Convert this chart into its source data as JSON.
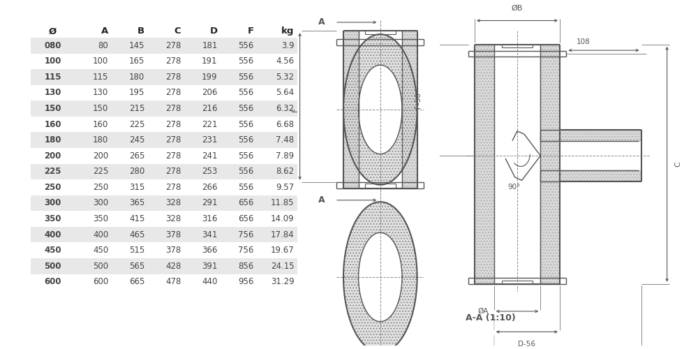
{
  "table": {
    "headers": [
      "Ø",
      "A",
      "B",
      "C",
      "D",
      "F",
      "kg"
    ],
    "rows": [
      [
        "080",
        "80",
        "145",
        "278",
        "181",
        "556",
        "3.9"
      ],
      [
        "100",
        "100",
        "165",
        "278",
        "191",
        "556",
        "4.56"
      ],
      [
        "115",
        "115",
        "180",
        "278",
        "199",
        "556",
        "5.32"
      ],
      [
        "130",
        "130",
        "195",
        "278",
        "206",
        "556",
        "5.64"
      ],
      [
        "150",
        "150",
        "215",
        "278",
        "216",
        "556",
        "6.32"
      ],
      [
        "160",
        "160",
        "225",
        "278",
        "221",
        "556",
        "6.68"
      ],
      [
        "180",
        "180",
        "245",
        "278",
        "231",
        "556",
        "7.48"
      ],
      [
        "200",
        "200",
        "265",
        "278",
        "241",
        "556",
        "7.89"
      ],
      [
        "225",
        "225",
        "280",
        "278",
        "253",
        "556",
        "8.62"
      ],
      [
        "250",
        "250",
        "315",
        "278",
        "266",
        "556",
        "9.57"
      ],
      [
        "300",
        "300",
        "365",
        "328",
        "291",
        "656",
        "11.85"
      ],
      [
        "350",
        "350",
        "415",
        "328",
        "316",
        "656",
        "14.09"
      ],
      [
        "400",
        "400",
        "465",
        "378",
        "341",
        "756",
        "17.84"
      ],
      [
        "450",
        "450",
        "515",
        "378",
        "366",
        "756",
        "19.67"
      ],
      [
        "500",
        "500",
        "565",
        "428",
        "391",
        "856",
        "24.15"
      ],
      [
        "600",
        "600",
        "665",
        "478",
        "440",
        "956",
        "31.29"
      ]
    ],
    "shaded_rows": [
      0,
      2,
      4,
      6,
      8,
      10,
      12,
      14
    ],
    "bg_color": "#e8e8e8",
    "text_color": "#444444",
    "header_color": "#222222"
  },
  "diagram": {
    "line_color": "#555555",
    "dim_color": "#555555",
    "hatch_fg": "#888888",
    "hatch_bg": "#d8d8d8"
  }
}
